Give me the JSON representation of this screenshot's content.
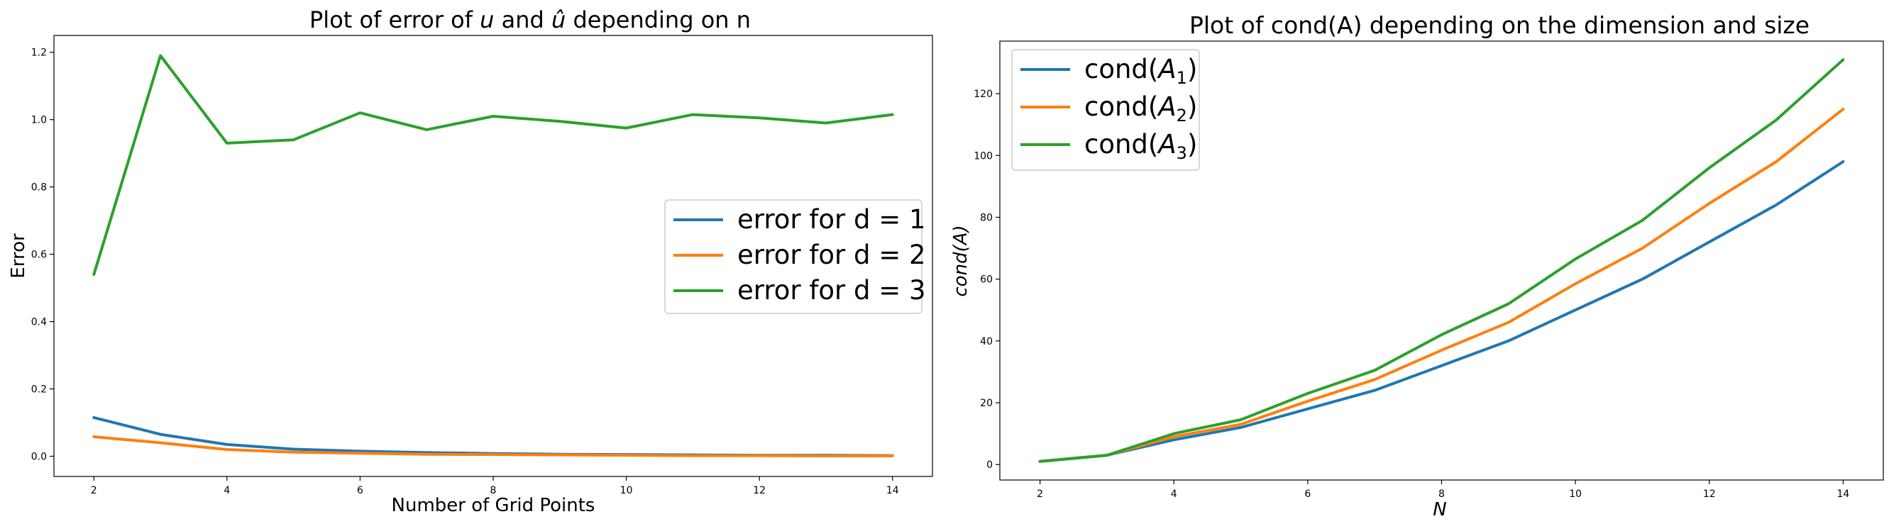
{
  "chart_data": [
    {
      "type": "line",
      "title_parts": [
        "Plot of error of ",
        "u",
        " and ",
        "û",
        " depending on n"
      ],
      "xlabel": "Number of Grid Points",
      "ylabel": "Error",
      "xlim": [
        1.4,
        14.6
      ],
      "ylim": [
        -0.06,
        1.25
      ],
      "xticks": [
        2,
        4,
        6,
        8,
        10,
        12,
        14
      ],
      "yticks": [
        0.0,
        0.2,
        0.4,
        0.6,
        0.8,
        1.0,
        1.2
      ],
      "ytick_decimals": 1,
      "grid": false,
      "legend_position": "center-right",
      "x": [
        2,
        3,
        4,
        5,
        6,
        7,
        8,
        9,
        10,
        11,
        12,
        13,
        14
      ],
      "series": [
        {
          "name": "error for d = 1",
          "color": "#1f77b4",
          "values": [
            0.115,
            0.065,
            0.035,
            0.021,
            0.015,
            0.011,
            0.008,
            0.006,
            0.005,
            0.004,
            0.003,
            0.003,
            0.002
          ]
        },
        {
          "name": "error for d = 2",
          "color": "#ff7f0e",
          "values": [
            0.058,
            0.04,
            0.02,
            0.012,
            0.009,
            0.006,
            0.005,
            0.004,
            0.003,
            0.002,
            0.002,
            0.001,
            0.001
          ]
        },
        {
          "name": "error for d = 3",
          "color": "#2ca02c",
          "values": [
            0.54,
            1.19,
            0.93,
            0.94,
            1.02,
            0.97,
            1.01,
            0.995,
            0.975,
            1.015,
            1.005,
            0.99,
            1.015
          ]
        }
      ]
    },
    {
      "type": "line",
      "title_parts": [
        "Plot of cond(A) depending on the dimension and size"
      ],
      "xlabel": "N",
      "ylabel": "cond(A)",
      "xlim": [
        1.4,
        14.6
      ],
      "ylim": [
        -5,
        137
      ],
      "xticks": [
        2,
        4,
        6,
        8,
        10,
        12,
        14
      ],
      "yticks": [
        0,
        20,
        40,
        60,
        80,
        100,
        120
      ],
      "ytick_decimals": 0,
      "grid": false,
      "legend_position": "top-left",
      "x": [
        2,
        3,
        4,
        5,
        6,
        7,
        8,
        9,
        10,
        11,
        12,
        13,
        14
      ],
      "series": [
        {
          "name": "cond(A1)",
          "label_base": "cond(",
          "label_sub": "1",
          "color": "#1f77b4",
          "values": [
            1,
            3,
            8,
            12,
            18,
            24,
            32,
            40,
            50,
            60,
            72,
            84,
            98
          ]
        },
        {
          "name": "cond(A2)",
          "label_base": "cond(",
          "label_sub": "2",
          "color": "#ff7f0e",
          "values": [
            1,
            3,
            9,
            13,
            20.5,
            27.5,
            37,
            46,
            58.5,
            70,
            84.5,
            98,
            115
          ]
        },
        {
          "name": "cond(A3)",
          "label_base": "cond(",
          "label_sub": "3",
          "color": "#2ca02c",
          "values": [
            1,
            3,
            10,
            14.5,
            23,
            30.5,
            42,
            52,
            66.5,
            79,
            96,
            111.5,
            131
          ]
        }
      ]
    }
  ]
}
